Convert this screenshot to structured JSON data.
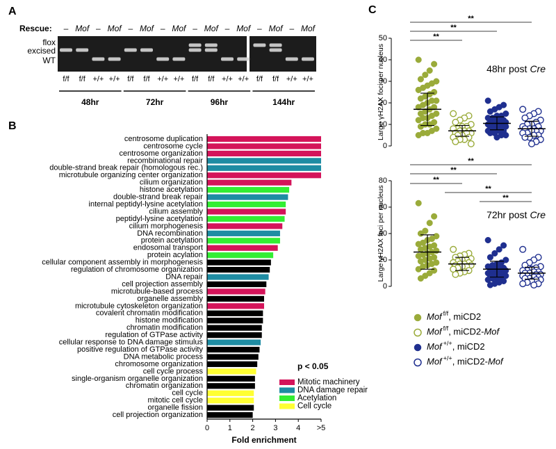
{
  "panel_labels": [
    "A",
    "B",
    "C"
  ],
  "panel_a": {
    "rescue_label": "Rescue:",
    "rescue": [
      "–",
      "Mof",
      "–",
      "Mof",
      "–",
      "Mof",
      "–",
      "Mof",
      "–",
      "Mof",
      "–",
      "Mof",
      "–",
      "Mof",
      "–",
      "Mof"
    ],
    "band_labels": [
      "flox",
      "excised",
      "WT"
    ],
    "genotypes": [
      "f/f",
      "f/f",
      "+/+",
      "+/+",
      "f/f",
      "f/f",
      "+/+",
      "+/+",
      "f/f",
      "f/f",
      "+/+",
      "+/+",
      "f/f",
      "f/f",
      "+/+",
      "+/+"
    ],
    "timepoints": [
      "48hr",
      "72hr",
      "96hr",
      "144hr"
    ]
  },
  "chart_data": [
    {
      "type": "hbar",
      "xlabel": "Fold enrichment",
      "categories": [
        "centrosome duplication",
        "centrosome cycle",
        "centrosome organization",
        "recombinational repair",
        "double-strand break repair (homologous rec.)",
        "microtubule organizing center organization",
        "cilium organization",
        "histone acetylation",
        "double-strand break repair",
        "internal peptidyl-lysine acetylation",
        "cilium assembly",
        "peptidyl-lysine acetylation",
        "cilium morphogenesis",
        "DNA recombination",
        "protein acetylation",
        "endosomal transport",
        "protein acylation",
        "cellular component assembly in morphogenesis",
        "regulation of chromosome organization",
        "DNA repair",
        "cell projection assembly",
        "microtubule-based process",
        "organelle assembly",
        "microtubule cytoskeleton organization",
        "covalent chromatin modification",
        "histone modification",
        "chromatin modification",
        "regulation of GTPase activity",
        "cellular response to DNA damage stimulus",
        "positive regulation of GTPase activity",
        "DNA metabolic process",
        "chromosome organization",
        "cell cycle process",
        "single-organism organelle organization",
        "chromatin organization",
        "cell cycle",
        "mitotic cell cycle",
        "organelle fission",
        "cell projection organization"
      ],
      "values": [
        5,
        5,
        5,
        5,
        5,
        5,
        3.7,
        3.6,
        3.55,
        3.45,
        3.45,
        3.4,
        3.3,
        3.2,
        3.2,
        3.1,
        2.9,
        2.8,
        2.75,
        2.7,
        2.6,
        2.55,
        2.5,
        2.5,
        2.45,
        2.45,
        2.4,
        2.4,
        2.35,
        2.3,
        2.25,
        2.2,
        2.15,
        2.1,
        2.1,
        2.05,
        2.05,
        2.05,
        2
      ],
      "colors": [
        "#d4145a",
        "#d4145a",
        "#d4145a",
        "#1e8ca3",
        "#1e8ca3",
        "#d4145a",
        "#d4145a",
        "#33ee33",
        "#1e8ca3",
        "#33ee33",
        "#d4145a",
        "#33ee33",
        "#d4145a",
        "#1e8ca3",
        "#33ee33",
        "#d4145a",
        "#33ee33",
        "#000000",
        "#000000",
        "#1e8ca3",
        "#000000",
        "#d4145a",
        "#000000",
        "#d4145a",
        "#000000",
        "#000000",
        "#000000",
        "#000000",
        "#1e8ca3",
        "#000000",
        "#000000",
        "#000000",
        "#ffff33",
        "#000000",
        "#000000",
        "#ffff33",
        "#ffff33",
        "#000000",
        "#000000"
      ],
      "xlim": [
        0,
        5
      ],
      "xticks": [
        0,
        1,
        2,
        3,
        4,
        {
          "value": 5,
          "label": ">5"
        }
      ],
      "legend_title": "p < 0.05",
      "legend": [
        {
          "name": "Mitotic machinery",
          "color": "#d4145a"
        },
        {
          "name": "DNA damage repair",
          "color": "#1e8ca3"
        },
        {
          "name": "Acetylation",
          "color": "#33ee33"
        },
        {
          "name": "Cell cycle",
          "color": "#ffff33"
        }
      ]
    },
    {
      "type": "dot",
      "title": "48hr post",
      "title_italic": "Cre",
      "ylabel": "Large γH2AX foci per nucleus",
      "ylim": [
        0,
        50
      ],
      "yticks": [
        0,
        10,
        20,
        30,
        40,
        50
      ],
      "significance": [
        "**",
        "**",
        "**"
      ],
      "series": [
        {
          "values": [
            40,
            38,
            35,
            33,
            31,
            30,
            29,
            28,
            27,
            26,
            25,
            24,
            23,
            22,
            21,
            21,
            20,
            19,
            18,
            18,
            17,
            16,
            15,
            15,
            14,
            13,
            13,
            12,
            11,
            10,
            10,
            9,
            8,
            7,
            6,
            6,
            5
          ],
          "mean": 17,
          "sd": 7.5
        },
        {
          "values": [
            15,
            14,
            13,
            12,
            11,
            10,
            9,
            9,
            8,
            8,
            7,
            7,
            7,
            6,
            6,
            6,
            5,
            5,
            4,
            4,
            3,
            3,
            2,
            1
          ],
          "mean": 7,
          "sd": 2.5
        },
        {
          "values": [
            21,
            19,
            18,
            17,
            16,
            15,
            14,
            14,
            13,
            13,
            12,
            12,
            12,
            11,
            11,
            11,
            10,
            10,
            10,
            10,
            9,
            9,
            9,
            9,
            8,
            8,
            8,
            7,
            7,
            7,
            6,
            6,
            5,
            5,
            4
          ],
          "mean": 10.5,
          "sd": 3
        },
        {
          "values": [
            17,
            16,
            15,
            14,
            13,
            12,
            11,
            10,
            10,
            9,
            9,
            8,
            8,
            8,
            7,
            7,
            7,
            6,
            6,
            5,
            5,
            4,
            4,
            3,
            2,
            1
          ],
          "mean": 8,
          "sd": 3.5
        }
      ]
    },
    {
      "type": "dot",
      "title": "72hr post",
      "title_italic": "Cre",
      "ylabel": "Large γH2AX foci per nucleus",
      "ylim": [
        0,
        80
      ],
      "yticks": [
        0,
        20,
        40,
        60,
        80
      ],
      "significance": [
        "**",
        "**",
        "**",
        "**",
        "**"
      ],
      "series": [
        {
          "values": [
            63,
            53,
            48,
            42,
            40,
            38,
            36,
            35,
            33,
            32,
            31,
            30,
            29,
            28,
            27,
            26,
            25,
            24,
            23,
            22,
            21,
            20,
            19,
            18,
            17,
            16,
            15,
            13,
            12,
            10,
            8,
            6
          ],
          "mean": 26,
          "sd": 13
        },
        {
          "values": [
            28,
            25,
            24,
            23,
            22,
            21,
            20,
            20,
            19,
            18,
            18,
            17,
            17,
            16,
            16,
            15,
            15,
            14,
            13,
            12,
            11,
            10,
            9
          ],
          "mean": 17,
          "sd": 5
        },
        {
          "values": [
            35,
            31,
            28,
            25,
            22,
            20,
            18,
            17,
            16,
            15,
            14,
            14,
            13,
            13,
            12,
            12,
            11,
            11,
            10,
            10,
            9,
            9,
            8,
            8,
            7,
            6,
            6,
            5,
            4,
            3,
            2,
            1
          ],
          "mean": 13,
          "sd": 6
        },
        {
          "values": [
            28,
            22,
            20,
            18,
            16,
            15,
            14,
            13,
            12,
            12,
            11,
            11,
            10,
            10,
            9,
            9,
            8,
            8,
            8,
            7,
            7,
            6,
            6,
            5,
            5,
            4,
            3,
            2,
            2,
            1
          ],
          "mean": 10,
          "sd": 4.5
        }
      ]
    }
  ],
  "legend_c": [
    {
      "gene": "Mof",
      "genotype": "f/f",
      "rescue": ", miCD2",
      "color": "#9aab3a",
      "filled": true
    },
    {
      "gene": "Mof",
      "genotype": "f/f",
      "rescue": ", miCD2-",
      "rescue_gene": "Mof",
      "color": "#9aab3a",
      "filled": false
    },
    {
      "gene": "Mof",
      "genotype": "+/+",
      "rescue": ", miCD2",
      "color": "#1f2f8f",
      "filled": true
    },
    {
      "gene": "Mof",
      "genotype": "+/+",
      "rescue": ", miCD2-",
      "rescue_gene": "Mof",
      "color": "#1f2f8f",
      "filled": false
    }
  ]
}
